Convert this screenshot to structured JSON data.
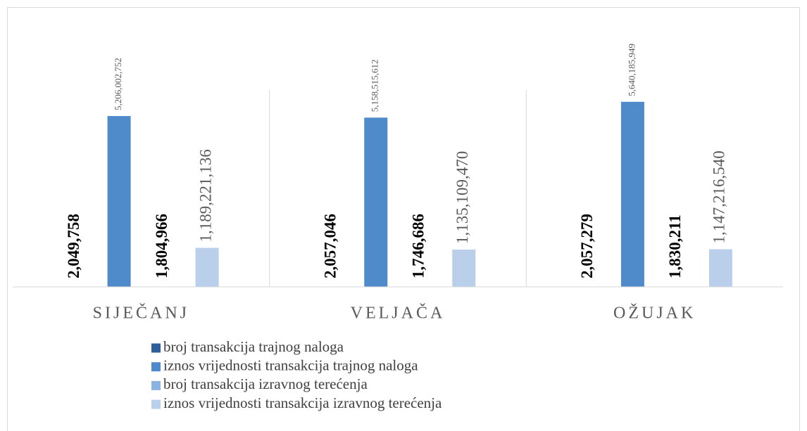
{
  "chart_data": {
    "type": "bar",
    "categories": [
      "SIJEČANJ",
      "VELJAČA",
      "OŽUJAK"
    ],
    "ylim": [
      0,
      6000000000
    ],
    "series": [
      {
        "name": "broj transakcija trajnog naloga",
        "color": "#2e5f98",
        "values": [
          2049758,
          2057046,
          2057279
        ],
        "value_labels": [
          "2,049,758",
          "2,057,046",
          "2,057,279"
        ]
      },
      {
        "name": "iznos vrijednosti transakcija trajnog naloga",
        "color": "#4f8acb",
        "values": [
          5206002752,
          5158515612,
          5640185949
        ],
        "value_labels": [
          "5,206,002,752",
          "5,158,515,612",
          "5,640,185,949"
        ]
      },
      {
        "name": "broj transakcija izravnog terećenja",
        "color": "#8cb2e2",
        "values": [
          1804966,
          1746686,
          1830211
        ],
        "value_labels": [
          "1,804,966",
          "1,746,686",
          "1,830,211"
        ]
      },
      {
        "name": "iznos vrijednosti transakcija izravnog terećenja",
        "color": "#b9cfea",
        "values": [
          1189221136,
          1135109470,
          1147216540
        ],
        "value_labels": [
          "1,189,221,136",
          "1,135,109,470",
          "1,147,216,540"
        ]
      }
    ]
  }
}
